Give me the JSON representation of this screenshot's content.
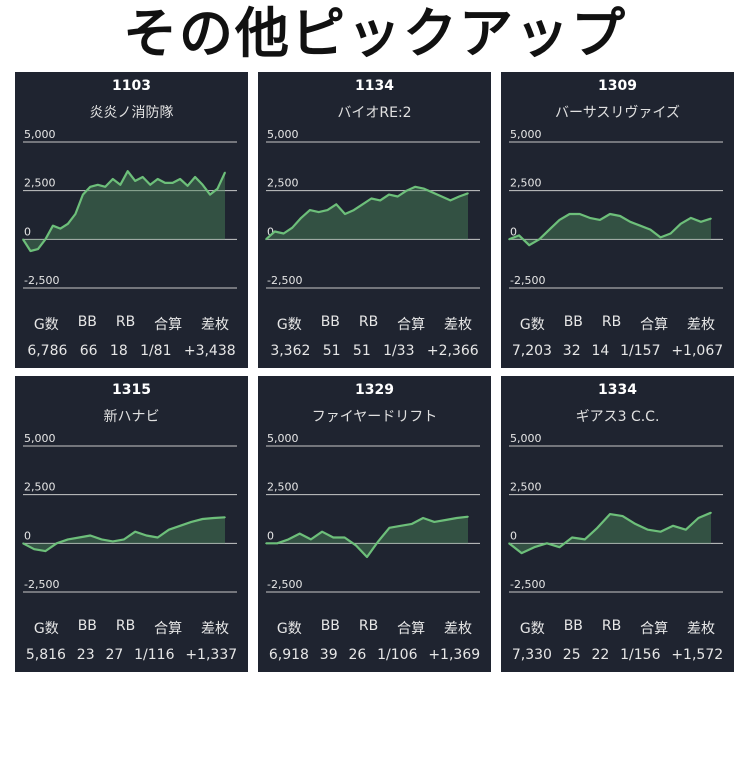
{
  "page_title": "その他ピックアップ",
  "stat_headers": [
    "G数",
    "BB",
    "RB",
    "合算",
    "差枚"
  ],
  "colors": {
    "card_bg": "#1f2430",
    "line": "#6dbf7a",
    "fill": "#4c8a5c",
    "grid": "#c8c8c8",
    "text": "#e6e6e6"
  },
  "chart_data": [
    {
      "type": "area",
      "title": "1103",
      "subtitle": "炎炎ノ消防隊",
      "y_ticks": [
        "5,000",
        "2,500",
        "0",
        "-2,500"
      ],
      "ylim": [
        -2500,
        5000
      ],
      "values": [
        0,
        -600,
        -500,
        0,
        700,
        550,
        800,
        1300,
        2300,
        2700,
        2800,
        2700,
        3100,
        2800,
        3500,
        3000,
        3200,
        2800,
        3100,
        2900,
        2900,
        3100,
        2750,
        3200,
        2800,
        2300,
        2600,
        3438
      ],
      "stats": [
        "6,786",
        "66",
        "18",
        "1/81",
        "+3,438"
      ]
    },
    {
      "type": "area",
      "title": "1134",
      "subtitle": "バイオRE:2",
      "y_ticks": [
        "5,000",
        "2,500",
        "0",
        "-2,500"
      ],
      "ylim": [
        -2500,
        5000
      ],
      "values": [
        0,
        400,
        300,
        600,
        1100,
        1500,
        1400,
        1500,
        1800,
        1300,
        1500,
        1800,
        2100,
        2000,
        2300,
        2200,
        2500,
        2700,
        2600,
        2400,
        2200,
        2000,
        2200,
        2366
      ],
      "stats": [
        "3,362",
        "51",
        "51",
        "1/33",
        "+2,366"
      ]
    },
    {
      "type": "area",
      "title": "1309",
      "subtitle": "バーサスリヴァイズ",
      "y_ticks": [
        "5,000",
        "2,500",
        "0",
        "-2,500"
      ],
      "ylim": [
        -2500,
        5000
      ],
      "values": [
        0,
        200,
        -300,
        0,
        500,
        1000,
        1300,
        1300,
        1100,
        1000,
        1300,
        1200,
        900,
        700,
        500,
        100,
        300,
        800,
        1100,
        900,
        1067
      ],
      "stats": [
        "7,203",
        "32",
        "14",
        "1/157",
        "+1,067"
      ]
    },
    {
      "type": "area",
      "title": "1315",
      "subtitle": "新ハナビ",
      "y_ticks": [
        "5,000",
        "2,500",
        "0",
        "-2,500"
      ],
      "ylim": [
        -2500,
        5000
      ],
      "values": [
        0,
        -300,
        -400,
        0,
        200,
        300,
        400,
        200,
        100,
        200,
        600,
        400,
        300,
        700,
        900,
        1100,
        1250,
        1300,
        1337
      ],
      "stats": [
        "5,816",
        "23",
        "27",
        "1/116",
        "+1,337"
      ]
    },
    {
      "type": "area",
      "title": "1329",
      "subtitle": "ファイヤードリフト",
      "y_ticks": [
        "5,000",
        "2,500",
        "0",
        "-2,500"
      ],
      "ylim": [
        -2500,
        5000
      ],
      "values": [
        0,
        0,
        200,
        500,
        200,
        600,
        300,
        300,
        -100,
        -700,
        100,
        800,
        900,
        1000,
        1300,
        1100,
        1200,
        1300,
        1369
      ],
      "stats": [
        "6,918",
        "39",
        "26",
        "1/106",
        "+1,369"
      ]
    },
    {
      "type": "area",
      "title": "1334",
      "subtitle": "ギアス3 C.C.",
      "y_ticks": [
        "5,000",
        "2,500",
        "0",
        "-2,500"
      ],
      "ylim": [
        -2500,
        5000
      ],
      "values": [
        0,
        -500,
        -200,
        0,
        -200,
        300,
        200,
        800,
        1500,
        1400,
        1000,
        700,
        600,
        900,
        700,
        1300,
        1572
      ],
      "stats": [
        "7,330",
        "25",
        "22",
        "1/156",
        "+1,572"
      ]
    }
  ]
}
